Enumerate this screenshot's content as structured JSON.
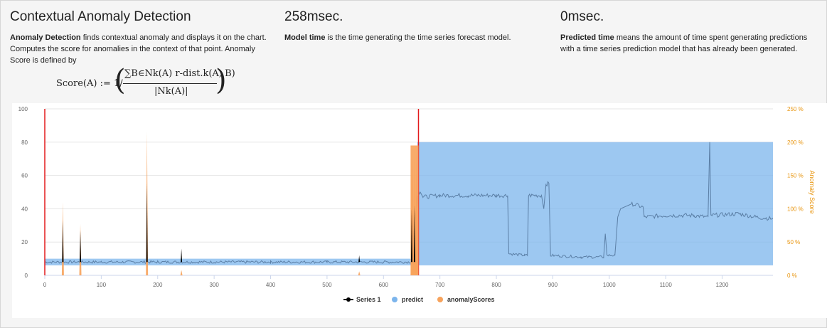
{
  "panel": {
    "title": "Contextual Anomaly Detection",
    "desc_bold": "Anomaly Detection",
    "desc_rest": " finds contextual anomaly and displays it on the chart. Computes the score for anomalies in the context of that point. Anomaly Score is defined by",
    "formula_lhs": "Score(A) := 1/",
    "formula_num": "∑B∈Nk(A) r-dist.k(A, B)",
    "formula_den": "|Nk(A)|"
  },
  "model": {
    "time": "258msec.",
    "desc_bold": "Model time",
    "desc_rest": " is the time generating the time series forecast model."
  },
  "predicted": {
    "time": "0msec.",
    "desc_bold": "Predicted time",
    "desc_rest": " means the amount of time spent generating predictions with a time series prediction model that has already been generated."
  },
  "colors": {
    "series1": "#000000",
    "predict": "#7cb5ec",
    "anomaly": "#f7a35c",
    "anomaly_axis": "#e8940c",
    "marker_line": "#e31a1c",
    "predict_line": "#5b7fa6"
  },
  "chart_data": {
    "type": "area",
    "x_ticks": [
      0,
      100,
      200,
      300,
      400,
      500,
      600,
      700,
      800,
      900,
      1000,
      1100,
      1200
    ],
    "x_range": [
      0,
      1290
    ],
    "y_ticks": [
      "0",
      "20",
      "40",
      "60",
      "80",
      "100"
    ],
    "y_range": [
      0,
      100
    ],
    "y2_ticks": [
      "0 %",
      "50 %",
      "100 %",
      "150 %",
      "200 %",
      "250 %"
    ],
    "y2_range": [
      0,
      250
    ],
    "y2_label": "Anomaly Score",
    "grid": true,
    "legend_position": "bottom-center",
    "legend": [
      "Series 1",
      "predict",
      "anomalyScores"
    ],
    "vertical_markers": [
      0,
      662
    ],
    "series": [
      {
        "name": "Series 1",
        "type": "spikes",
        "baseline": 8,
        "spikes": [
          [
            32,
            33
          ],
          [
            63,
            27
          ],
          [
            181,
            55
          ],
          [
            242,
            16
          ],
          [
            557,
            12
          ],
          [
            650,
            40
          ],
          [
            655,
            42
          ]
        ]
      },
      {
        "name": "predict",
        "type": "band",
        "segments": [
          {
            "x": [
              0,
              655
            ],
            "low": 6,
            "high": 10
          },
          {
            "x": [
              660,
              1290
            ],
            "low": 6,
            "high": 80
          }
        ],
        "line": [
          [
            0,
            8
          ],
          [
            100,
            8
          ],
          [
            200,
            8
          ],
          [
            300,
            8
          ],
          [
            400,
            8
          ],
          [
            500,
            8
          ],
          [
            600,
            8
          ],
          [
            650,
            8
          ],
          [
            655,
            30
          ],
          [
            660,
            47
          ],
          [
            665,
            50
          ],
          [
            670,
            47
          ],
          [
            700,
            48
          ],
          [
            750,
            48
          ],
          [
            800,
            48
          ],
          [
            820,
            48
          ],
          [
            822,
            13
          ],
          [
            850,
            12
          ],
          [
            855,
            12
          ],
          [
            857,
            48
          ],
          [
            880,
            48
          ],
          [
            884,
            40
          ],
          [
            888,
            55
          ],
          [
            893,
            55
          ],
          [
            896,
            12
          ],
          [
            950,
            11
          ],
          [
            990,
            11
          ],
          [
            993,
            25
          ],
          [
            996,
            12
          ],
          [
            1010,
            12
          ],
          [
            1015,
            35
          ],
          [
            1020,
            40
          ],
          [
            1040,
            43
          ],
          [
            1060,
            41
          ],
          [
            1062,
            35
          ],
          [
            1100,
            36
          ],
          [
            1150,
            36
          ],
          [
            1175,
            35
          ],
          [
            1178,
            80
          ],
          [
            1180,
            36
          ],
          [
            1230,
            37
          ],
          [
            1260,
            35
          ],
          [
            1290,
            34
          ]
        ]
      },
      {
        "name": "anomalyScores",
        "type": "spikes",
        "axis": "y2",
        "spikes": [
          [
            32,
            110
          ],
          [
            63,
            77
          ],
          [
            181,
            215
          ],
          [
            242,
            8
          ],
          [
            557,
            6
          ],
          [
            650,
            185
          ],
          [
            652,
            195
          ],
          [
            655,
            193
          ],
          [
            658,
            190
          ],
          [
            660,
            120
          ]
        ]
      }
    ]
  }
}
